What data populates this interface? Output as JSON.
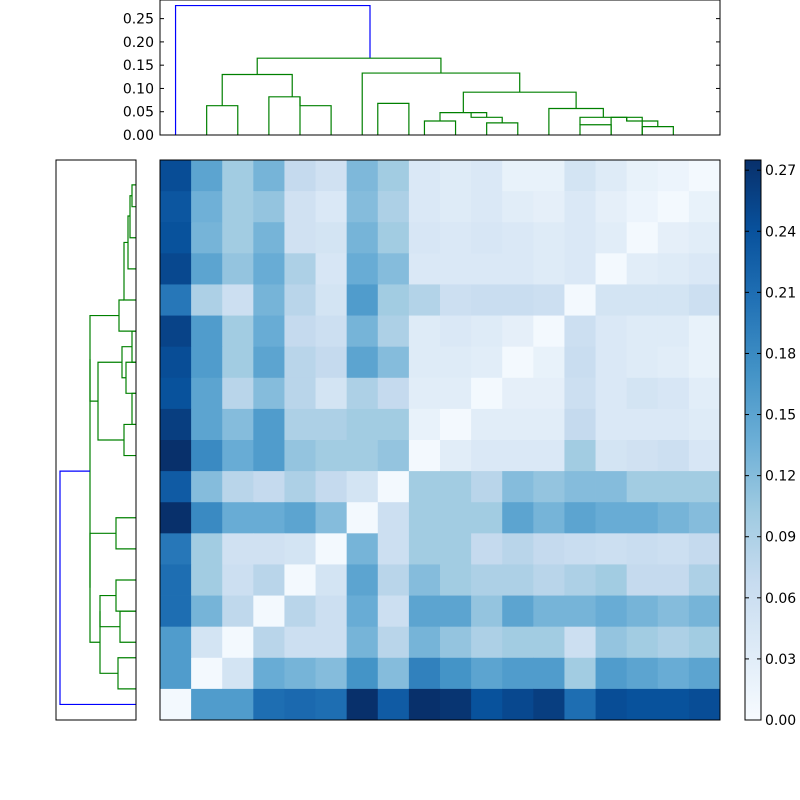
{
  "chart_data": [
    {
      "type": "dendrogram",
      "orientation": "top",
      "ylim": [
        0,
        0.29
      ],
      "yticks": [
        "0.00",
        "0.05",
        "0.10",
        "0.15",
        "0.20",
        "0.25"
      ],
      "leaf_count": 18,
      "colors": {
        "root": "#0000ff",
        "cluster": "#008000"
      },
      "links": [
        {
          "a": 2,
          "b": 3,
          "h": 0.063,
          "c": "g"
        },
        {
          "a": 4,
          "b": 5,
          "h": 0.082,
          "c": "g"
        },
        {
          "a": 6,
          "b": 7,
          "h": 0.063,
          "c": "g"
        },
        {
          "a": 8,
          "b": 9,
          "h": 0.068,
          "c": "g"
        },
        {
          "a": 10,
          "b": 11,
          "h": 0.03,
          "c": "g"
        },
        {
          "a": 12,
          "b": 13,
          "h": 0.038,
          "c": "g"
        },
        {
          "a": 14,
          "b": 15,
          "h": 0.022,
          "c": "g"
        },
        {
          "a": 16,
          "b": 17,
          "h": 0.055,
          "c": "g"
        },
        {
          "a": 18,
          "b": 19,
          "h": 0.038,
          "c": "g"
        },
        {
          "a": 20,
          "b": 21,
          "h": 0.03,
          "c": "g"
        },
        {
          "a": 22,
          "b": 23,
          "h": 0.018,
          "c": "g"
        },
        {
          "a": 24,
          "b": 25,
          "h": 0.125,
          "c": "g"
        },
        {
          "a": 26,
          "b": 27,
          "h": 0.083,
          "c": "g"
        },
        {
          "a": 28,
          "b": 29,
          "h": 0.075,
          "c": "g"
        },
        {
          "a": 30,
          "b": 31,
          "h": 0.089,
          "c": "g"
        },
        {
          "a": 32,
          "b": 33,
          "h": 0.133,
          "c": "g"
        },
        {
          "a": 34,
          "b": 35,
          "h": 0.165,
          "c": "g"
        },
        {
          "a": 36,
          "b": 37,
          "h": 0.278,
          "c": "b"
        }
      ],
      "nodes": [
        [
          0,
          0
        ],
        [
          1,
          0
        ],
        [
          2,
          0
        ],
        [
          3,
          0
        ],
        [
          4,
          0
        ],
        [
          5,
          0
        ],
        [
          6,
          0
        ],
        [
          7,
          0
        ],
        [
          8,
          0
        ],
        [
          9,
          0
        ],
        [
          10,
          0
        ],
        [
          11,
          0
        ],
        [
          12,
          0
        ],
        [
          13,
          0
        ],
        [
          14,
          0
        ],
        [
          15,
          0
        ],
        [
          16,
          0
        ],
        [
          17,
          0
        ],
        [
          1.5,
          0.063
        ],
        [
          3.5,
          0.082
        ],
        [
          5.5,
          0.063
        ],
        [
          7.5,
          0.068
        ],
        [
          9.5,
          0.03
        ],
        [
          10.5,
          0.038
        ],
        [
          13.5,
          0.022
        ],
        [
          15.5,
          0.055
        ],
        [
          16.5,
          0.038
        ],
        [
          16.75,
          0.03
        ],
        [
          17.5,
          0.018
        ],
        [
          2.5,
          0.125
        ],
        [
          4.5,
          0.083
        ],
        [
          8.5,
          0.075
        ],
        [
          11.5,
          0.089
        ],
        [
          14.5,
          0.133
        ],
        [
          4.75,
          0.165
        ],
        [
          6.5,
          0.278
        ]
      ]
    },
    {
      "type": "dendrogram",
      "orientation": "left",
      "leaf_count": 18,
      "colors": {
        "root": "#0000ff",
        "cluster": "#008000"
      },
      "segments": [
        [
          0,
          5,
          0,
          10,
          "b"
        ],
        [
          0.5,
          1.5,
          10,
          14,
          "g"
        ],
        [
          2,
          3,
          14,
          19,
          "g"
        ],
        [
          4,
          5,
          14,
          22,
          "g"
        ],
        [
          6,
          7,
          19,
          42,
          "g"
        ],
        [
          8,
          9,
          22,
          26,
          "g"
        ],
        [
          10,
          11,
          26,
          28,
          "g"
        ],
        [
          12,
          13,
          28,
          29,
          "g"
        ],
        [
          14,
          15,
          29,
          28,
          "g"
        ],
        [
          16,
          17,
          28,
          30,
          "g"
        ]
      ]
    },
    {
      "type": "heatmap",
      "rows": 18,
      "cols": 18,
      "values": [
        [
          0.245,
          0.15,
          0.1,
          0.13,
          0.07,
          0.055,
          0.125,
          0.1,
          0.04,
          0.035,
          0.04,
          0.02,
          0.02,
          0.05,
          0.035,
          0.02,
          0.015,
          0.005
        ],
        [
          0.235,
          0.135,
          0.1,
          0.11,
          0.055,
          0.04,
          0.12,
          0.09,
          0.04,
          0.035,
          0.04,
          0.03,
          0.025,
          0.04,
          0.025,
          0.015,
          0.005,
          0.02
        ],
        [
          0.24,
          0.13,
          0.1,
          0.13,
          0.055,
          0.05,
          0.13,
          0.1,
          0.045,
          0.04,
          0.045,
          0.04,
          0.035,
          0.04,
          0.03,
          0.005,
          0.025,
          0.03
        ],
        [
          0.25,
          0.15,
          0.11,
          0.14,
          0.09,
          0.045,
          0.14,
          0.12,
          0.04,
          0.04,
          0.04,
          0.04,
          0.035,
          0.04,
          0.005,
          0.03,
          0.035,
          0.04
        ],
        [
          0.2,
          0.09,
          0.06,
          0.13,
          0.08,
          0.05,
          0.16,
          0.1,
          0.085,
          0.06,
          0.065,
          0.065,
          0.06,
          0.005,
          0.05,
          0.05,
          0.05,
          0.06
        ],
        [
          0.255,
          0.16,
          0.1,
          0.14,
          0.07,
          0.06,
          0.13,
          0.09,
          0.035,
          0.04,
          0.035,
          0.025,
          0.005,
          0.06,
          0.04,
          0.035,
          0.035,
          0.02
        ],
        [
          0.245,
          0.16,
          0.1,
          0.15,
          0.08,
          0.07,
          0.15,
          0.12,
          0.035,
          0.035,
          0.03,
          0.005,
          0.02,
          0.065,
          0.04,
          0.035,
          0.03,
          0.02
        ],
        [
          0.24,
          0.15,
          0.08,
          0.12,
          0.08,
          0.05,
          0.09,
          0.07,
          0.03,
          0.03,
          0.005,
          0.025,
          0.025,
          0.06,
          0.04,
          0.05,
          0.045,
          0.03
        ],
        [
          0.26,
          0.15,
          0.12,
          0.16,
          0.09,
          0.09,
          0.1,
          0.1,
          0.02,
          0.005,
          0.03,
          0.03,
          0.03,
          0.07,
          0.04,
          0.04,
          0.04,
          0.035
        ],
        [
          0.275,
          0.18,
          0.14,
          0.16,
          0.11,
          0.1,
          0.1,
          0.11,
          0.005,
          0.03,
          0.04,
          0.04,
          0.04,
          0.1,
          0.05,
          0.055,
          0.06,
          0.045
        ],
        [
          0.23,
          0.12,
          0.08,
          0.07,
          0.09,
          0.07,
          0.05,
          0.005,
          0.1,
          0.1,
          0.08,
          0.12,
          0.11,
          0.12,
          0.12,
          0.1,
          0.1,
          0.1
        ],
        [
          0.285,
          0.18,
          0.14,
          0.14,
          0.15,
          0.12,
          0.005,
          0.06,
          0.1,
          0.1,
          0.1,
          0.15,
          0.13,
          0.15,
          0.14,
          0.14,
          0.13,
          0.12
        ],
        [
          0.2,
          0.1,
          0.055,
          0.055,
          0.05,
          0.005,
          0.13,
          0.06,
          0.1,
          0.1,
          0.07,
          0.08,
          0.07,
          0.065,
          0.06,
          0.065,
          0.06,
          0.07
        ],
        [
          0.21,
          0.1,
          0.06,
          0.08,
          0.005,
          0.05,
          0.15,
          0.08,
          0.12,
          0.1,
          0.09,
          0.09,
          0.08,
          0.09,
          0.1,
          0.07,
          0.07,
          0.09
        ],
        [
          0.21,
          0.13,
          0.075,
          0.005,
          0.08,
          0.06,
          0.14,
          0.06,
          0.15,
          0.15,
          0.11,
          0.15,
          0.13,
          0.13,
          0.14,
          0.13,
          0.12,
          0.13
        ],
        [
          0.16,
          0.05,
          0.005,
          0.08,
          0.06,
          0.06,
          0.13,
          0.08,
          0.13,
          0.11,
          0.09,
          0.1,
          0.1,
          0.06,
          0.11,
          0.1,
          0.09,
          0.1
        ],
        [
          0.16,
          0.005,
          0.05,
          0.14,
          0.13,
          0.12,
          0.17,
          0.12,
          0.19,
          0.17,
          0.15,
          0.16,
          0.16,
          0.1,
          0.16,
          0.15,
          0.14,
          0.15
        ],
        [
          0.005,
          0.16,
          0.16,
          0.21,
          0.215,
          0.21,
          0.28,
          0.23,
          0.275,
          0.27,
          0.24,
          0.25,
          0.26,
          0.21,
          0.245,
          0.24,
          0.24,
          0.245
        ]
      ],
      "vmin": 0,
      "vmax": 0.275,
      "colormap": "Blues"
    },
    {
      "type": "colorbar",
      "ticks": [
        "0.00",
        "0.03",
        "0.06",
        "0.09",
        "0.12",
        "0.15",
        "0.18",
        "0.21",
        "0.24",
        "0.27"
      ],
      "range": [
        0,
        0.275
      ]
    }
  ]
}
